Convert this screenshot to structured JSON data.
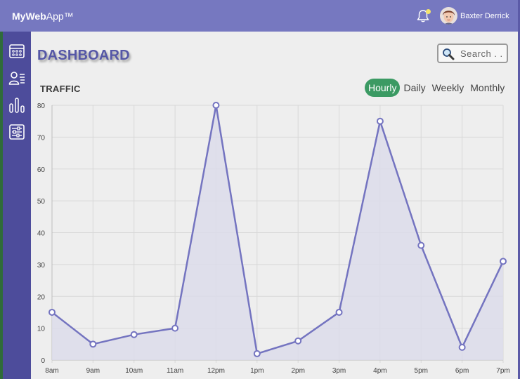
{
  "header": {
    "brand_bold": "MyWeb",
    "brand_rest": "App™",
    "user_name": "Baxter Derrick"
  },
  "sidebar": {
    "items": [
      {
        "icon": "calendar-icon"
      },
      {
        "icon": "user-list-icon"
      },
      {
        "icon": "bar-chart-icon"
      },
      {
        "icon": "sliders-icon"
      }
    ]
  },
  "page": {
    "title": "DASHBOARD",
    "search_placeholder": "Search . ."
  },
  "traffic": {
    "title": "TRAFFIC",
    "tabs": [
      "Hourly",
      "Daily",
      "Weekly",
      "Monthly"
    ],
    "active_tab": "Hourly"
  },
  "colors": {
    "header": "#7678c0",
    "sidebar": "#4d4c9b",
    "accent": "#3b9a63",
    "line": "#7474c0",
    "fill": "#dcdcea"
  },
  "chart_data": {
    "type": "area",
    "categories": [
      "8am",
      "9am",
      "10am",
      "11am",
      "12pm",
      "1pm",
      "2pm",
      "3pm",
      "4pm",
      "5pm",
      "6pm",
      "7pm"
    ],
    "series": [
      {
        "values": [
          15,
          5,
          8,
          10,
          80,
          2,
          6,
          15,
          75,
          36,
          4,
          31
        ]
      }
    ],
    "ylim": [
      0,
      80
    ],
    "yticks": [
      0,
      10,
      20,
      30,
      40,
      50,
      60,
      70,
      80
    ],
    "grid": true
  }
}
